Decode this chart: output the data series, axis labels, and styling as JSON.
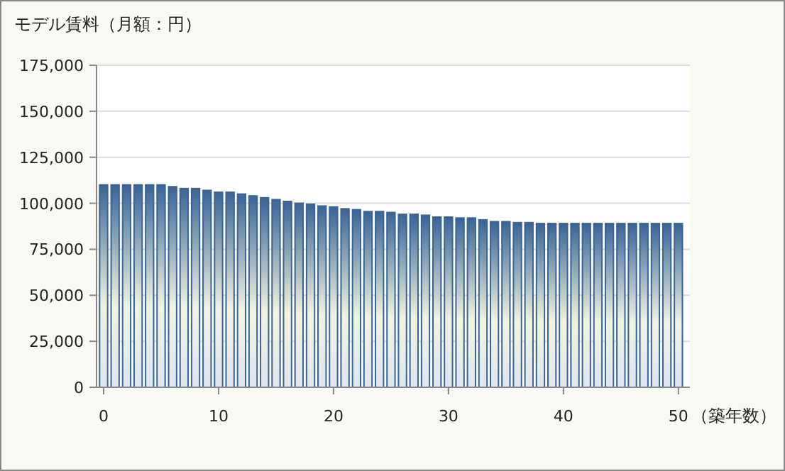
{
  "chart_data": {
    "type": "bar",
    "title": "モデル賃料（月額：円）",
    "xlabel": "（築年数）",
    "x": [
      0,
      1,
      2,
      3,
      4,
      5,
      6,
      7,
      8,
      9,
      10,
      11,
      12,
      13,
      14,
      15,
      16,
      17,
      18,
      19,
      20,
      21,
      22,
      23,
      24,
      25,
      26,
      27,
      28,
      29,
      30,
      31,
      32,
      33,
      34,
      35,
      36,
      37,
      38,
      39,
      40,
      41,
      42,
      43,
      44,
      45,
      46,
      47,
      48,
      49,
      50
    ],
    "values": [
      110000,
      110000,
      110000,
      110000,
      110000,
      110000,
      109000,
      108000,
      108000,
      107000,
      106000,
      106000,
      105000,
      104000,
      103000,
      102000,
      101000,
      100000,
      99500,
      98500,
      98000,
      97000,
      96500,
      95500,
      95500,
      95000,
      94000,
      94000,
      93500,
      92500,
      92500,
      92000,
      92000,
      91000,
      90000,
      90000,
      89500,
      89500,
      89000,
      89000,
      89000,
      89000,
      89000,
      89000,
      89000,
      89000,
      89000,
      89000,
      89000,
      89000,
      89000
    ],
    "color": "#3a6496",
    "xlim": [
      0,
      51
    ],
    "xticks": [
      0,
      10,
      20,
      30,
      40,
      50
    ],
    "ylim": [
      0,
      175000
    ],
    "yticks": [
      0,
      {
        "value": 25000,
        "label": "25,000"
      },
      {
        "value": 50000,
        "label": "50,000"
      },
      {
        "value": 75000,
        "label": "75,000"
      },
      {
        "value": 100000,
        "label": "100,000"
      },
      {
        "value": 125000,
        "label": "125,000"
      },
      {
        "value": 150000,
        "label": "150,000"
      },
      {
        "value": 175000,
        "label": "175,000"
      }
    ],
    "grid": "y"
  }
}
